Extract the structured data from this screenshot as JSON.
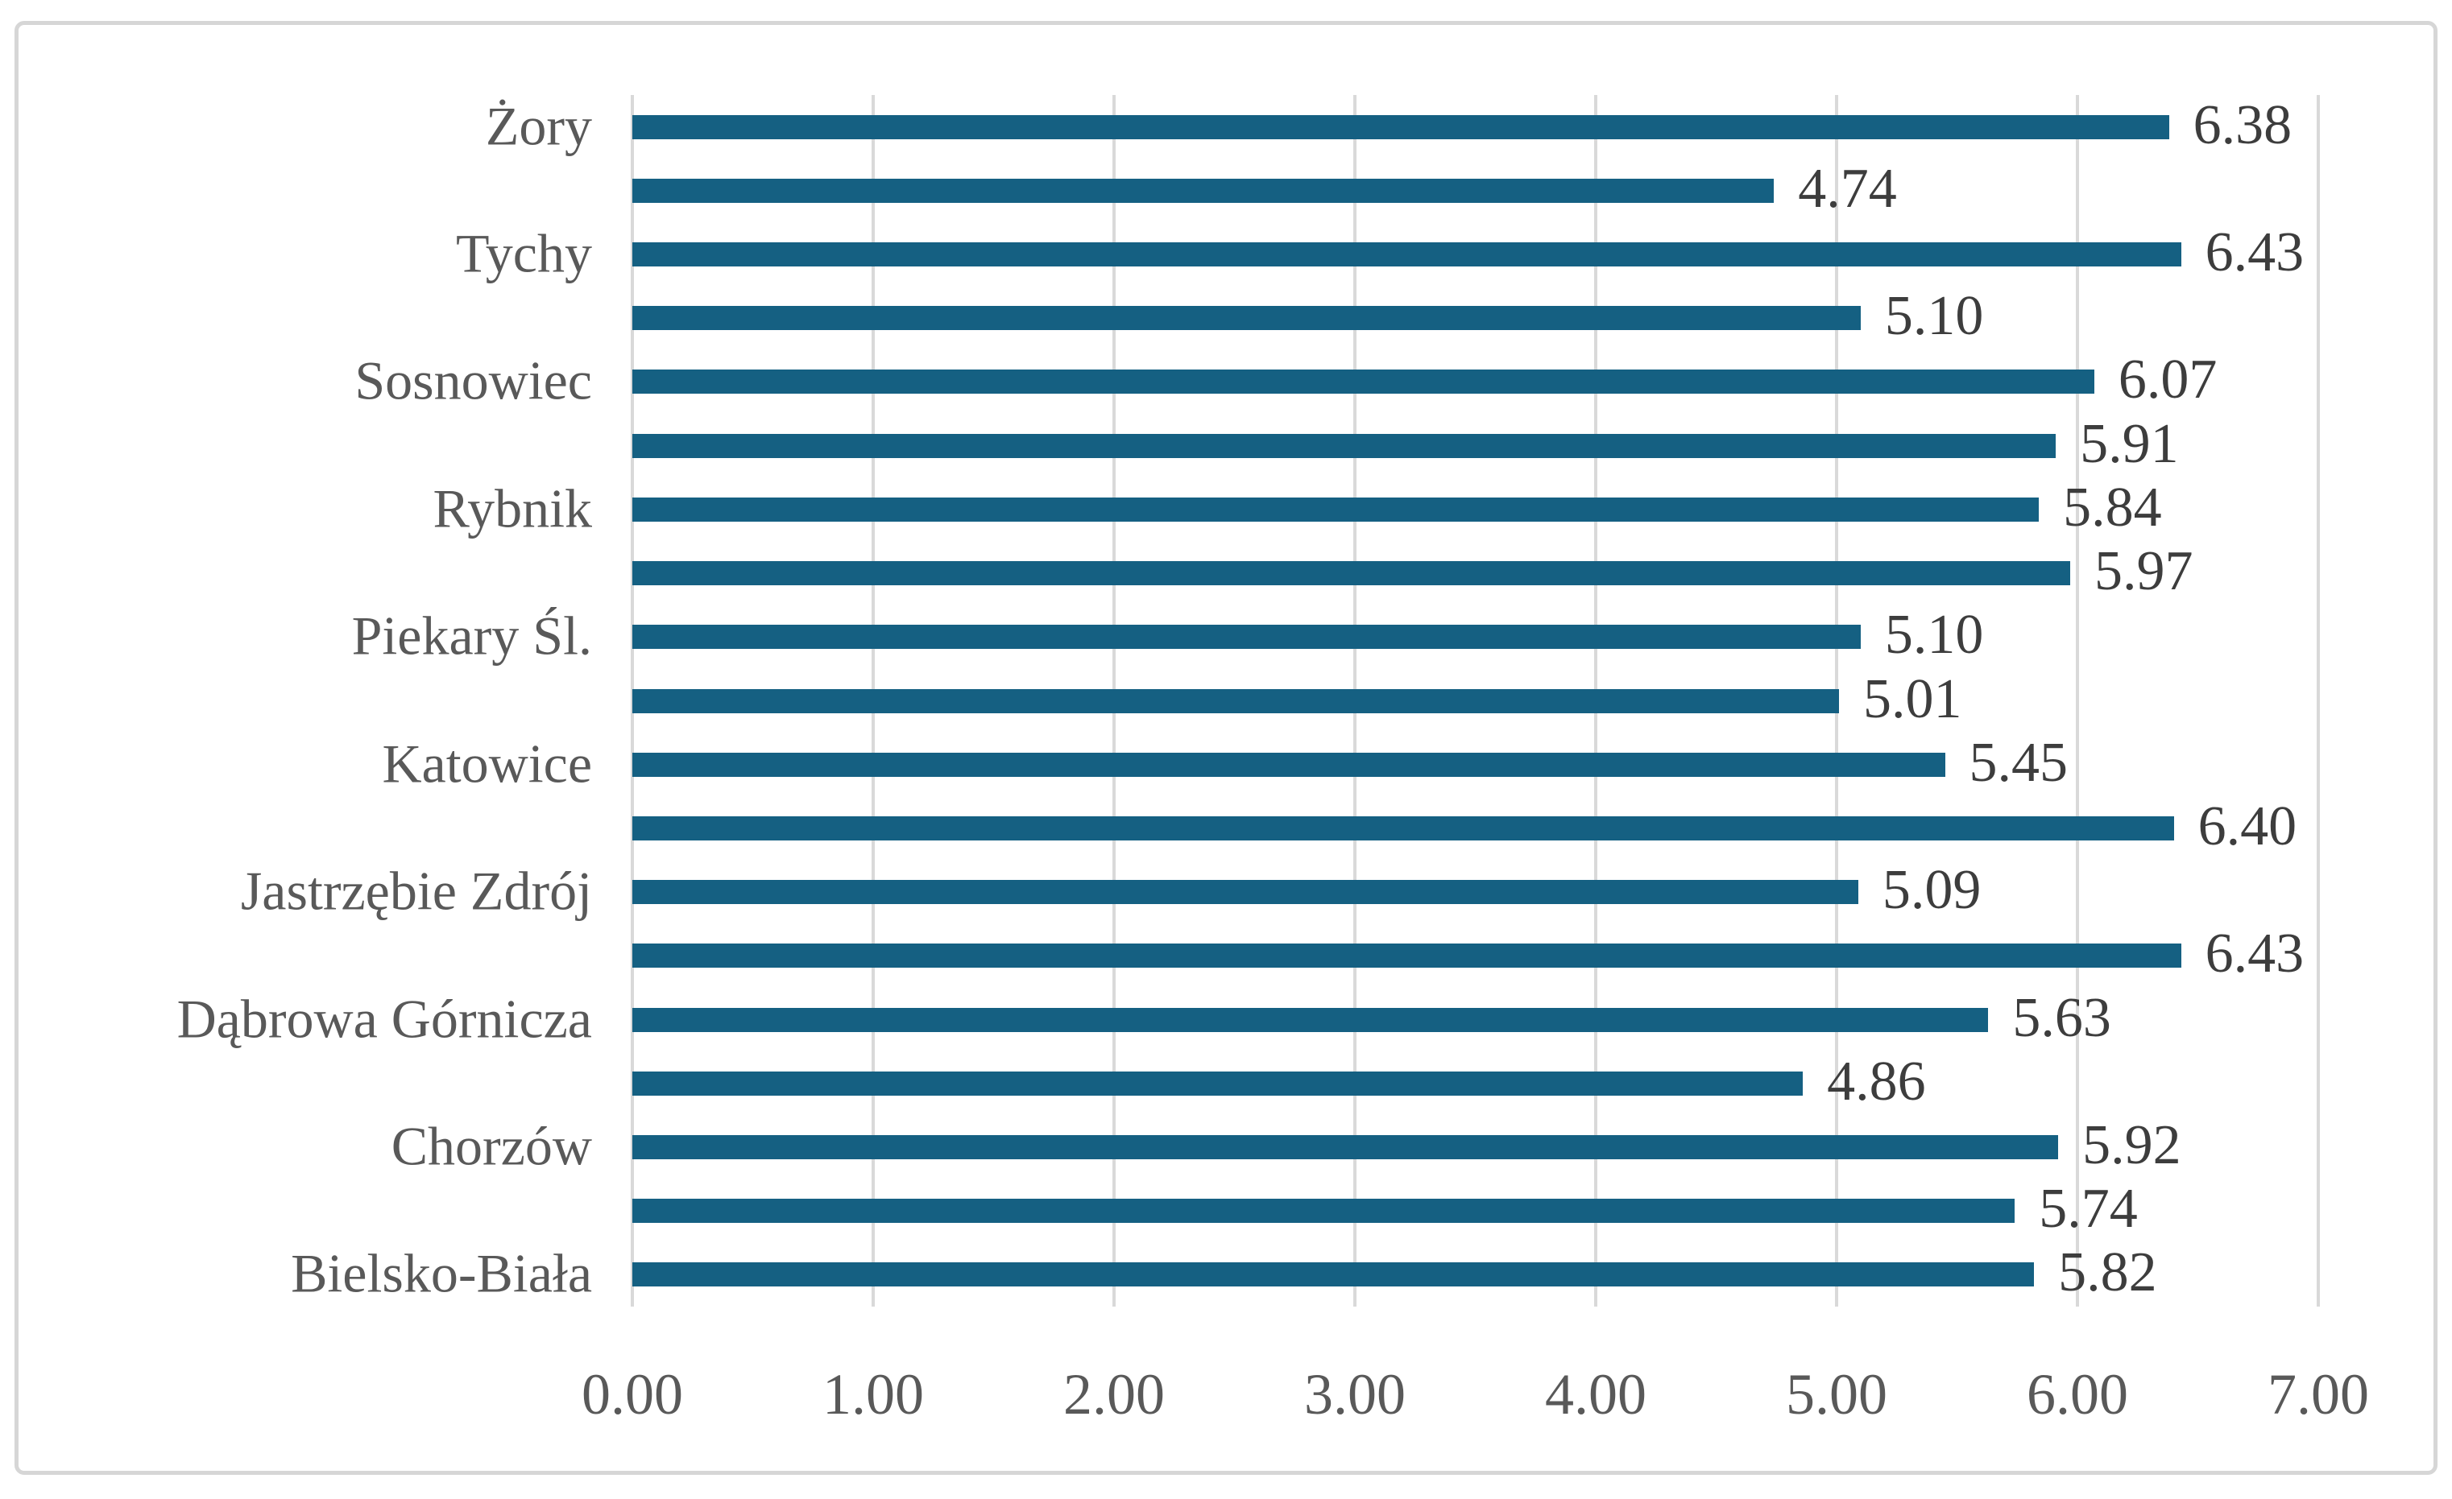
{
  "chart": {
    "title": "",
    "colors": {
      "bar": "#156082",
      "gridline": "#d9d9d9",
      "frame_border": "#d6d6d6",
      "category_label": "#595959",
      "value_label": "#3d3d3d",
      "axis_tick_label": "#595959",
      "background": "#ffffff"
    }
  },
  "chart_data": {
    "type": "bar",
    "orientation": "horizontal",
    "title": "",
    "xlabel": "",
    "ylabel": "",
    "xlim": [
      0,
      7
    ],
    "grid": true,
    "legend": false,
    "value_labels_shown": true,
    "x_ticks": [
      "0.00",
      "1.00",
      "2.00",
      "3.00",
      "4.00",
      "5.00",
      "6.00",
      "7.00"
    ],
    "rows": [
      {
        "label": "Żory",
        "value": 6.38,
        "value_label": "6.38"
      },
      {
        "label": "",
        "value": 4.74,
        "value_label": "4.74"
      },
      {
        "label": "Tychy",
        "value": 6.43,
        "value_label": "6.43"
      },
      {
        "label": "",
        "value": 5.1,
        "value_label": "5.10"
      },
      {
        "label": "Sosnowiec",
        "value": 6.07,
        "value_label": "6.07"
      },
      {
        "label": "",
        "value": 5.91,
        "value_label": "5.91"
      },
      {
        "label": "Rybnik",
        "value": 5.84,
        "value_label": "5.84"
      },
      {
        "label": "",
        "value": 5.97,
        "value_label": "5.97"
      },
      {
        "label": "Piekary Śl.",
        "value": 5.1,
        "value_label": "5.10"
      },
      {
        "label": "",
        "value": 5.01,
        "value_label": "5.01"
      },
      {
        "label": "Katowice",
        "value": 5.45,
        "value_label": "5.45"
      },
      {
        "label": "",
        "value": 6.4,
        "value_label": "6.40"
      },
      {
        "label": "Jastrzębie Zdrój",
        "value": 5.09,
        "value_label": "5.09"
      },
      {
        "label": "",
        "value": 6.43,
        "value_label": "6.43"
      },
      {
        "label": "Dąbrowa Górnicza",
        "value": 5.63,
        "value_label": "5.63"
      },
      {
        "label": "",
        "value": 4.86,
        "value_label": "4.86"
      },
      {
        "label": "Chorzów",
        "value": 5.92,
        "value_label": "5.92"
      },
      {
        "label": "",
        "value": 5.74,
        "value_label": "5.74"
      },
      {
        "label": "Bielsko-Biała",
        "value": 5.82,
        "value_label": "5.82"
      }
    ]
  }
}
